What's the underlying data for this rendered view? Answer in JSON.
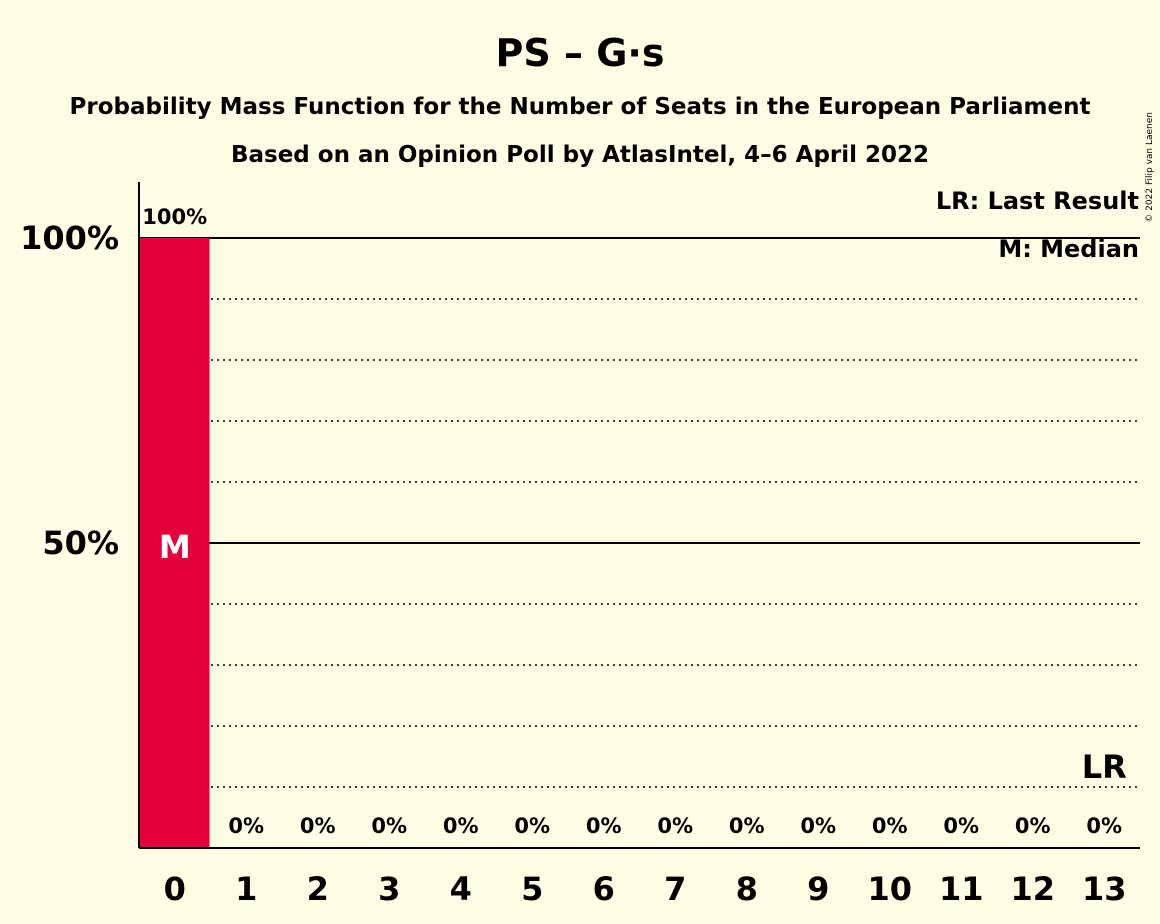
{
  "title": "PS – G·s",
  "subtitle": "Probability Mass Function for the Number of Seats in the European Parliament",
  "subtitle2": "Based on an Opinion Poll by AtlasIntel, 4–6 April 2022",
  "legend": {
    "lr": "LR: Last Result",
    "m": "M: Median"
  },
  "credit": "© 2022 Filip van Laenen",
  "colors": {
    "background": "#FFFDE3",
    "bar": "#E4003B",
    "text": "#000000"
  },
  "chart_data": {
    "type": "bar",
    "categories": [
      "0",
      "1",
      "2",
      "3",
      "4",
      "5",
      "6",
      "7",
      "8",
      "9",
      "10",
      "11",
      "12",
      "13"
    ],
    "values": [
      100,
      0,
      0,
      0,
      0,
      0,
      0,
      0,
      0,
      0,
      0,
      0,
      0,
      0
    ],
    "value_labels": [
      "100%",
      "0%",
      "0%",
      "0%",
      "0%",
      "0%",
      "0%",
      "0%",
      "0%",
      "0%",
      "0%",
      "0%",
      "0%",
      "0%"
    ],
    "ylim": [
      0,
      100
    ],
    "yticks": [
      {
        "value": 50,
        "label": "50%"
      },
      {
        "value": 100,
        "label": "100%"
      }
    ],
    "grid_minor_step": 10,
    "median_index": 0,
    "median_label": "M",
    "last_result_index": 13,
    "last_result_label": "LR"
  }
}
